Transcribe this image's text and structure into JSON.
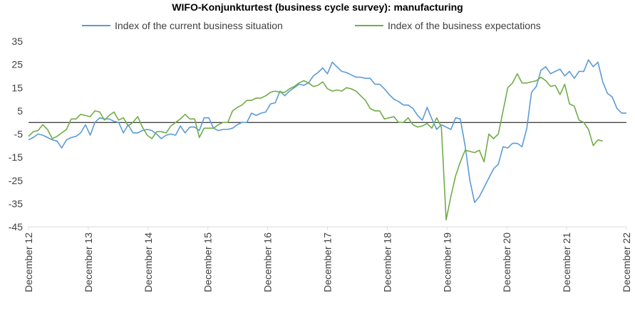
{
  "chart_data": {
    "type": "line",
    "title": "WIFO-Konjunkturtest (business cycle survey): manufacturing",
    "xlabel": "",
    "ylabel": "",
    "ylim": [
      -45,
      35
    ],
    "yticks": [
      35,
      25,
      15,
      5,
      -5,
      -15,
      -25,
      -35,
      -45
    ],
    "xlim": [
      "2012-12",
      "2022-12"
    ],
    "xticks": [
      "December 12",
      "December 13",
      "December 14",
      "December 15",
      "December 16",
      "December 17",
      "December 18",
      "December 19",
      "December 20",
      "December 21",
      "December 22"
    ],
    "zero_line": true,
    "grid": false,
    "legend_position": "top",
    "series": [
      {
        "name": "Index of the current business situation",
        "color": "#5B9BD5",
        "values": [
          -7.5,
          -6.5,
          -5,
          -5.5,
          -6.5,
          -7.5,
          -8,
          -11,
          -7.5,
          -6.5,
          -6,
          -4.5,
          -1,
          -5.5,
          0,
          2,
          1.5,
          1.5,
          0.5,
          0,
          -4.5,
          -1,
          -4.5,
          -4.5,
          -3.5,
          -3,
          -3.5,
          -5,
          -7,
          -5.5,
          -5,
          -5.5,
          -1.5,
          -4.5,
          -2,
          -2,
          -3.5,
          2,
          2,
          -2.5,
          -3.5,
          -3,
          -3,
          -2.5,
          -1,
          0,
          0,
          4,
          3,
          4,
          4.5,
          8,
          8.5,
          13.5,
          11.5,
          13.5,
          15,
          16.5,
          16,
          17,
          20,
          21.5,
          23.5,
          21,
          26,
          24,
          22,
          21.5,
          20.5,
          19.5,
          19.5,
          19,
          19,
          16.5,
          16.5,
          14.5,
          12,
          10,
          9,
          7.5,
          7.5,
          6,
          3,
          1,
          6.5,
          1.5,
          -3,
          -1,
          -2,
          -3,
          2,
          1.5,
          -10,
          -25,
          -34.5,
          -32,
          -28,
          -24,
          -20,
          -18,
          -10.5,
          -11,
          -9,
          -9,
          -10.5,
          -2.5,
          13,
          15.5,
          22.5,
          24,
          21,
          22,
          23,
          20,
          22,
          19,
          22,
          22,
          27,
          24,
          26,
          17.5,
          12.5,
          11,
          6,
          4,
          4
        ]
      },
      {
        "name": "Index of the business expectations",
        "color": "#70AD47",
        "values": [
          -6,
          -4,
          -3.5,
          -1,
          -3,
          -7,
          -6,
          -4.5,
          -3,
          1.5,
          1.5,
          3.5,
          3,
          2.5,
          5,
          4.5,
          1,
          3,
          4.5,
          1,
          2,
          -1.5,
          0,
          2.5,
          -2,
          -5.5,
          -7,
          -4,
          -4,
          -4.5,
          -1.5,
          0,
          1.5,
          3.5,
          1.5,
          1.5,
          -6.5,
          -2.5,
          -2.5,
          -2.5,
          -1,
          0,
          0,
          5,
          6.5,
          7.5,
          9.5,
          9.5,
          10.5,
          10.5,
          11.5,
          13,
          13.5,
          13,
          13,
          14.5,
          15.5,
          17,
          18,
          17,
          15.5,
          16,
          17.5,
          14.5,
          13.5,
          14,
          13.5,
          15,
          14.5,
          13.5,
          11.5,
          9.5,
          6,
          5,
          5,
          1.5,
          2,
          2.5,
          0,
          0,
          2,
          -1,
          -2,
          -1.5,
          -0.5,
          -2.5,
          2,
          -2,
          -42,
          -32,
          -23,
          -17,
          -12,
          -12.5,
          -13,
          -12,
          -17,
          -5,
          -7,
          -5,
          5,
          15,
          17,
          21,
          17,
          17,
          17.5,
          18,
          19.5,
          18,
          15.5,
          16,
          12,
          16.5,
          8,
          7,
          1,
          0,
          -3,
          -10,
          -7.5,
          -8
        ]
      }
    ]
  }
}
